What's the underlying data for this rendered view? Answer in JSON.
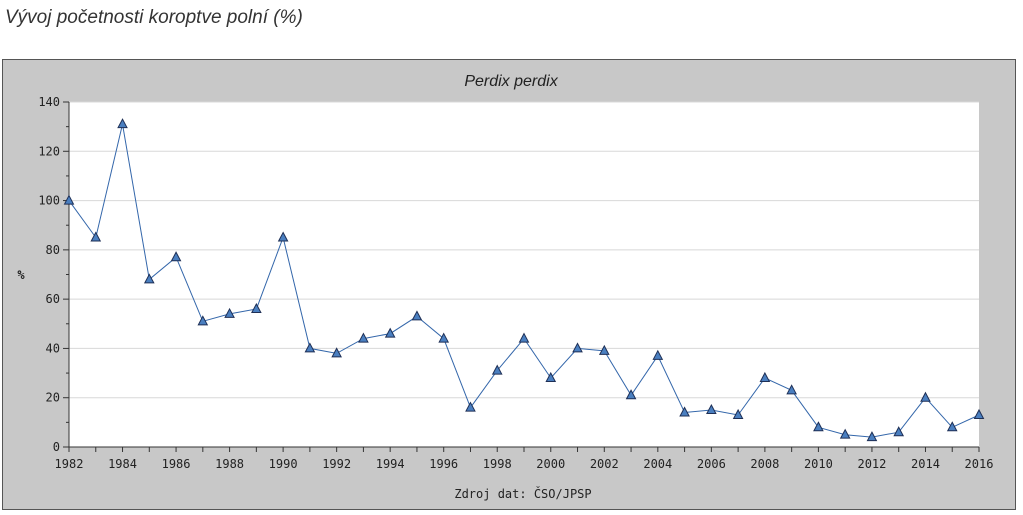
{
  "page": {
    "title": "Vývoj početnosti koroptve polní (%)"
  },
  "chart_data": {
    "type": "line",
    "title": "Perdix perdix",
    "xlabel": "Zdroj dat: ČSO/JPSP",
    "ylabel": "%",
    "ylim": [
      0,
      140
    ],
    "yticks": [
      0,
      20,
      40,
      60,
      80,
      100,
      120,
      140
    ],
    "xlim": [
      1982,
      2016
    ],
    "xticks": [
      1982,
      1984,
      1986,
      1988,
      1990,
      1992,
      1994,
      1996,
      1998,
      2000,
      2002,
      2004,
      2006,
      2008,
      2010,
      2012,
      2014,
      2016
    ],
    "grid": true,
    "marker": "triangle",
    "colors": {
      "line": "#3366aa",
      "marker": "#2a4f8a",
      "plot_bg": "#ffffff",
      "frame_bg": "#c8c8c8",
      "grid": "#d8d8d8"
    },
    "series": [
      {
        "x": [
          1982,
          1983,
          1984,
          1985,
          1986,
          1987,
          1988,
          1989,
          1990,
          1991,
          1992,
          1993,
          1994,
          1995,
          1996,
          1997,
          1998,
          1999,
          2000,
          2001,
          2002,
          2003,
          2004,
          2005,
          2006,
          2007,
          2008,
          2009,
          2010,
          2011,
          2012,
          2013,
          2014,
          2015,
          2016
        ],
        "values": [
          100,
          85,
          131,
          68,
          77,
          51,
          54,
          56,
          85,
          40,
          38,
          44,
          46,
          53,
          44,
          16,
          31,
          44,
          28,
          40,
          39,
          21,
          37,
          14,
          15,
          13,
          28,
          23,
          8,
          5,
          4,
          6,
          20,
          8,
          13
        ]
      }
    ]
  }
}
